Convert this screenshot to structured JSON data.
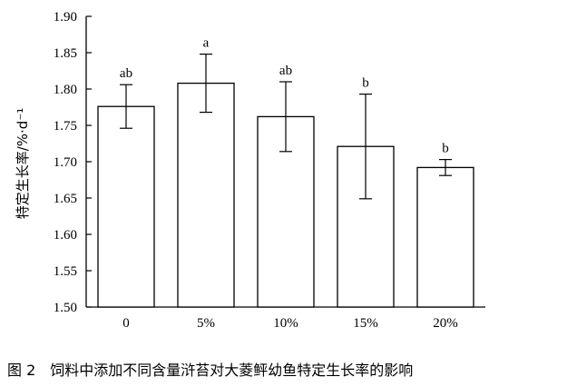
{
  "chart_data": {
    "type": "bar",
    "categories": [
      "0",
      "5%",
      "10%",
      "15%",
      "20%"
    ],
    "values": [
      1.776,
      1.808,
      1.762,
      1.721,
      1.692
    ],
    "errors": [
      0.03,
      0.04,
      0.048,
      0.072,
      0.011
    ],
    "significance": [
      "ab",
      "a",
      "ab",
      "b",
      "b"
    ],
    "ylabel": "特定生长率/%·d⁻¹",
    "xlabel": "",
    "ylim": [
      1.5,
      1.9
    ],
    "yticks": [
      "1.50",
      "1.55",
      "1.60",
      "1.65",
      "1.70",
      "1.75",
      "1.80",
      "1.85",
      "1.90"
    ],
    "grid": false,
    "bar_fill": "#ffffff",
    "bar_stroke": "#000000"
  },
  "caption": {
    "number": "图 2",
    "text": "饲料中添加不同含量浒苔对大菱鲆幼鱼特定生长率的影响"
  }
}
